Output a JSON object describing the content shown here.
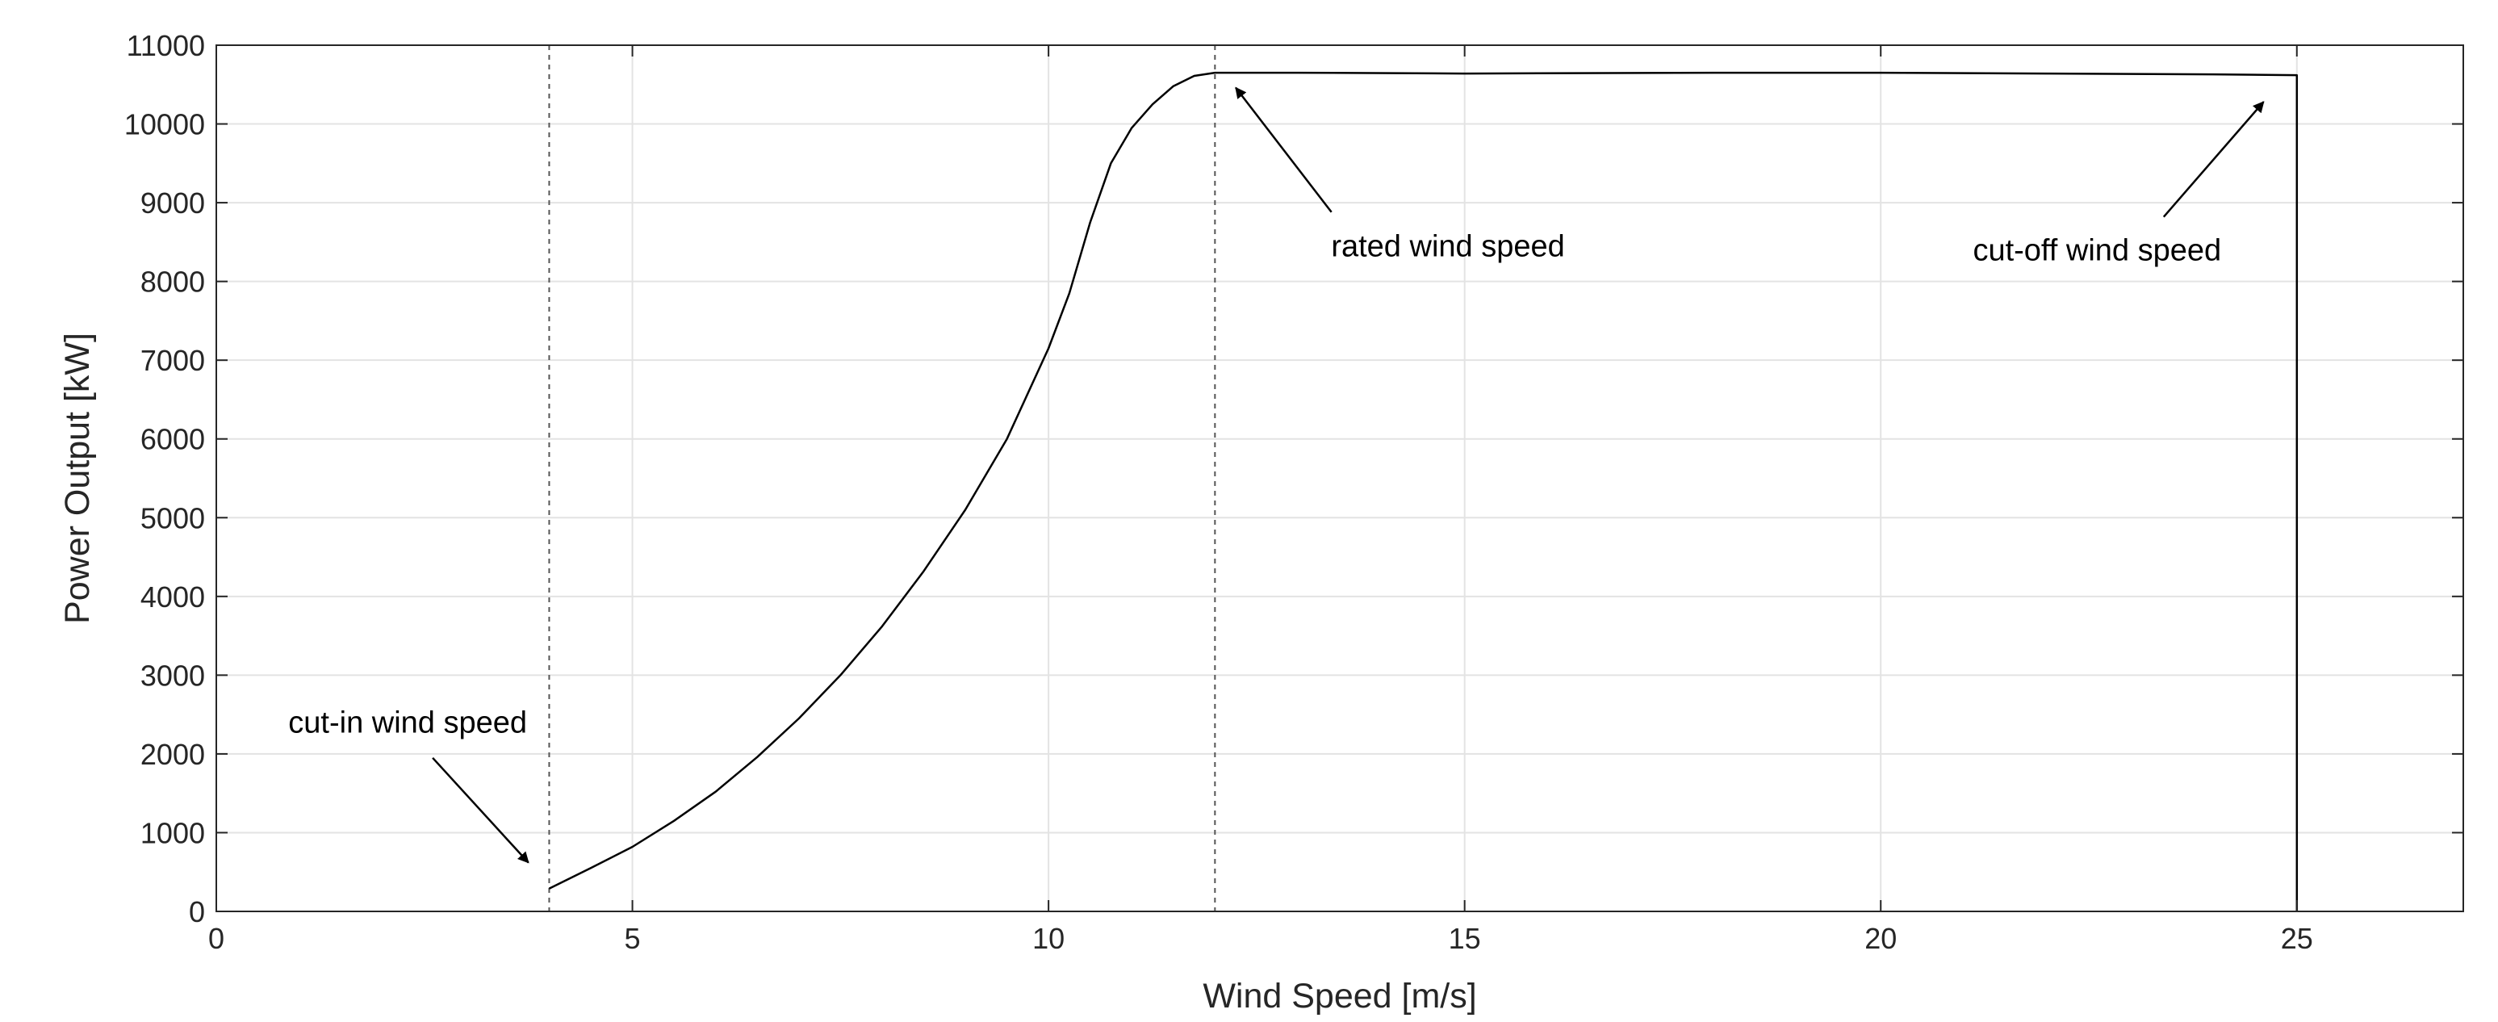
{
  "chart_data": {
    "type": "line",
    "title": "",
    "xlabel": "Wind Speed [m/s]",
    "ylabel": "Power Output [kW]",
    "xlim": [
      0,
      27
    ],
    "ylim": [
      0,
      11000
    ],
    "xticks": [
      0,
      5,
      10,
      15,
      20,
      25
    ],
    "yticks": [
      0,
      1000,
      2000,
      3000,
      4000,
      5000,
      6000,
      7000,
      8000,
      9000,
      10000,
      11000
    ],
    "grid": true,
    "series": [
      {
        "x": [
          4,
          4.5,
          5,
          5.5,
          6,
          6.5,
          7,
          7.5,
          8,
          8.5,
          9,
          9.5,
          10,
          10.25,
          10.5,
          10.75,
          11,
          11.25,
          11.5,
          11.75,
          12,
          13,
          15,
          18,
          20,
          22,
          24,
          25,
          25
        ],
        "y": [
          290,
          550,
          820,
          1150,
          1520,
          1960,
          2450,
          3000,
          3620,
          4320,
          5100,
          6000,
          7150,
          7850,
          8750,
          9500,
          9950,
          10250,
          10480,
          10610,
          10650,
          10650,
          10640,
          10650,
          10650,
          10640,
          10630,
          10620,
          0
        ]
      }
    ],
    "reference_lines": [
      {
        "x": 4,
        "style": "dotted"
      },
      {
        "x": 12,
        "style": "dotted"
      }
    ],
    "annotations": [
      {
        "text": "cut-in wind speed",
        "text_pos": [
          2.3,
          2270
        ],
        "arrow_from": [
          2.6,
          1950
        ],
        "arrow_to": [
          3.75,
          620
        ]
      },
      {
        "text": "rated wind speed",
        "text_pos": [
          14.8,
          8320
        ],
        "arrow_from": [
          13.4,
          8880
        ],
        "arrow_to": [
          12.25,
          10460
        ]
      },
      {
        "text": "cut-off wind speed",
        "text_pos": [
          22.6,
          8270
        ],
        "arrow_from": [
          23.4,
          8820
        ],
        "arrow_to": [
          24.6,
          10280
        ]
      }
    ]
  }
}
